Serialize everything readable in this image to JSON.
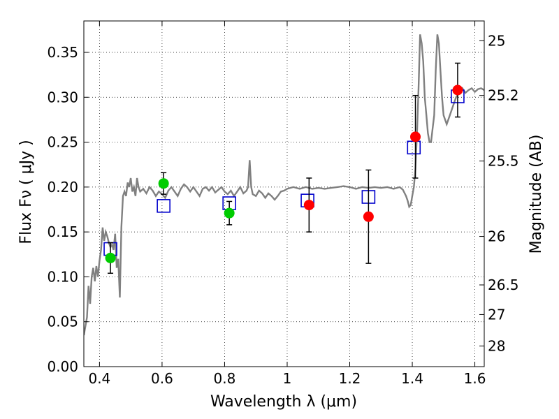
{
  "chart_data": {
    "type": "scatter",
    "xlabel": "Wavelength  λ (μm)",
    "ylabel": "Flux  Fν  ( μJy )",
    "ylabel_right": "Magnitude (AB)",
    "xlim": [
      0.35,
      1.63
    ],
    "ylim": [
      0.0,
      0.385
    ],
    "grid": true,
    "x_ticks": [
      0.4,
      0.6,
      0.8,
      1.0,
      1.2,
      1.4,
      1.6
    ],
    "x_tick_labels": [
      "0.4",
      "0.6",
      "0.8",
      "1",
      "1.2",
      "1.4",
      "1.6"
    ],
    "y_ticks": [
      0.0,
      0.05,
      0.1,
      0.15,
      0.2,
      0.25,
      0.3,
      0.35
    ],
    "y_tick_labels": [
      "0.00",
      "0.05",
      "0.10",
      "0.15",
      "0.20",
      "0.25",
      "0.30",
      "0.35"
    ],
    "right_ticks": [
      {
        "label": "25",
        "flux": 0.363
      },
      {
        "label": "25.2",
        "flux": 0.302
      },
      {
        "label": "25.5",
        "flux": 0.229
      },
      {
        "label": "26",
        "flux": 0.145
      },
      {
        "label": "26.5",
        "flux": 0.091
      },
      {
        "label": "27",
        "flux": 0.058
      },
      {
        "label": "28",
        "flux": 0.023
      }
    ],
    "series": [
      {
        "kind": "line",
        "color": "#808080",
        "points": [
          [
            0.35,
            0.035
          ],
          [
            0.36,
            0.055
          ],
          [
            0.365,
            0.09
          ],
          [
            0.37,
            0.07
          ],
          [
            0.375,
            0.1
          ],
          [
            0.38,
            0.11
          ],
          [
            0.385,
            0.095
          ],
          [
            0.39,
            0.112
          ],
          [
            0.395,
            0.1
          ],
          [
            0.4,
            0.118
          ],
          [
            0.405,
            0.13
          ],
          [
            0.41,
            0.155
          ],
          [
            0.415,
            0.14
          ],
          [
            0.42,
            0.15
          ],
          [
            0.425,
            0.145
          ],
          [
            0.43,
            0.138
          ],
          [
            0.435,
            0.133
          ],
          [
            0.44,
            0.136
          ],
          [
            0.445,
            0.13
          ],
          [
            0.45,
            0.148
          ],
          [
            0.455,
            0.11
          ],
          [
            0.46,
            0.12
          ],
          [
            0.465,
            0.077
          ],
          [
            0.47,
            0.155
          ],
          [
            0.475,
            0.19
          ],
          [
            0.48,
            0.195
          ],
          [
            0.485,
            0.19
          ],
          [
            0.49,
            0.205
          ],
          [
            0.495,
            0.2
          ],
          [
            0.5,
            0.21
          ],
          [
            0.505,
            0.195
          ],
          [
            0.51,
            0.2
          ],
          [
            0.515,
            0.19
          ],
          [
            0.52,
            0.21
          ],
          [
            0.525,
            0.2
          ],
          [
            0.53,
            0.195
          ],
          [
            0.54,
            0.198
          ],
          [
            0.55,
            0.193
          ],
          [
            0.56,
            0.2
          ],
          [
            0.57,
            0.196
          ],
          [
            0.58,
            0.19
          ],
          [
            0.59,
            0.195
          ],
          [
            0.6,
            0.192
          ],
          [
            0.61,
            0.188
          ],
          [
            0.62,
            0.196
          ],
          [
            0.63,
            0.2
          ],
          [
            0.64,
            0.195
          ],
          [
            0.65,
            0.19
          ],
          [
            0.66,
            0.198
          ],
          [
            0.67,
            0.203
          ],
          [
            0.68,
            0.2
          ],
          [
            0.69,
            0.195
          ],
          [
            0.7,
            0.2
          ],
          [
            0.71,
            0.195
          ],
          [
            0.72,
            0.19
          ],
          [
            0.73,
            0.198
          ],
          [
            0.74,
            0.2
          ],
          [
            0.75,
            0.196
          ],
          [
            0.76,
            0.2
          ],
          [
            0.77,
            0.194
          ],
          [
            0.78,
            0.197
          ],
          [
            0.79,
            0.2
          ],
          [
            0.8,
            0.195
          ],
          [
            0.81,
            0.192
          ],
          [
            0.82,
            0.196
          ],
          [
            0.83,
            0.19
          ],
          [
            0.84,
            0.195
          ],
          [
            0.85,
            0.2
          ],
          [
            0.86,
            0.193
          ],
          [
            0.87,
            0.196
          ],
          [
            0.875,
            0.2
          ],
          [
            0.88,
            0.23
          ],
          [
            0.885,
            0.2
          ],
          [
            0.89,
            0.192
          ],
          [
            0.9,
            0.19
          ],
          [
            0.91,
            0.196
          ],
          [
            0.92,
            0.193
          ],
          [
            0.93,
            0.188
          ],
          [
            0.94,
            0.193
          ],
          [
            0.95,
            0.19
          ],
          [
            0.96,
            0.186
          ],
          [
            0.97,
            0.19
          ],
          [
            0.98,
            0.195
          ],
          [
            0.99,
            0.196
          ],
          [
            1.0,
            0.198
          ],
          [
            1.02,
            0.2
          ],
          [
            1.04,
            0.198
          ],
          [
            1.06,
            0.2
          ],
          [
            1.08,
            0.198
          ],
          [
            1.1,
            0.199
          ],
          [
            1.12,
            0.198
          ],
          [
            1.14,
            0.199
          ],
          [
            1.16,
            0.2
          ],
          [
            1.18,
            0.201
          ],
          [
            1.2,
            0.2
          ],
          [
            1.22,
            0.198
          ],
          [
            1.24,
            0.2
          ],
          [
            1.26,
            0.199
          ],
          [
            1.28,
            0.2
          ],
          [
            1.3,
            0.199
          ],
          [
            1.32,
            0.2
          ],
          [
            1.34,
            0.198
          ],
          [
            1.36,
            0.2
          ],
          [
            1.37,
            0.197
          ],
          [
            1.38,
            0.19
          ],
          [
            1.385,
            0.185
          ],
          [
            1.39,
            0.178
          ],
          [
            1.395,
            0.18
          ],
          [
            1.4,
            0.19
          ],
          [
            1.405,
            0.2
          ],
          [
            1.41,
            0.22
          ],
          [
            1.415,
            0.26
          ],
          [
            1.42,
            0.31
          ],
          [
            1.425,
            0.37
          ],
          [
            1.43,
            0.36
          ],
          [
            1.435,
            0.34
          ],
          [
            1.44,
            0.3
          ],
          [
            1.445,
            0.28
          ],
          [
            1.45,
            0.26
          ],
          [
            1.455,
            0.25
          ],
          [
            1.46,
            0.25
          ],
          [
            1.465,
            0.265
          ],
          [
            1.47,
            0.28
          ],
          [
            1.475,
            0.33
          ],
          [
            1.48,
            0.37
          ],
          [
            1.485,
            0.36
          ],
          [
            1.49,
            0.33
          ],
          [
            1.495,
            0.3
          ],
          [
            1.5,
            0.28
          ],
          [
            1.51,
            0.27
          ],
          [
            1.52,
            0.28
          ],
          [
            1.53,
            0.29
          ],
          [
            1.54,
            0.3
          ],
          [
            1.55,
            0.305
          ],
          [
            1.56,
            0.31
          ],
          [
            1.57,
            0.305
          ],
          [
            1.58,
            0.308
          ],
          [
            1.59,
            0.31
          ],
          [
            1.6,
            0.306
          ],
          [
            1.61,
            0.309
          ],
          [
            1.62,
            0.31
          ],
          [
            1.63,
            0.308
          ]
        ]
      },
      {
        "kind": "open-square",
        "color": "#0000cc",
        "points": [
          [
            0.435,
            0.131
          ],
          [
            0.605,
            0.179
          ],
          [
            0.815,
            0.182
          ],
          [
            1.065,
            0.185
          ],
          [
            1.26,
            0.189
          ],
          [
            1.405,
            0.244
          ],
          [
            1.545,
            0.301
          ]
        ]
      },
      {
        "kind": "filled-circle",
        "color": "#00cc00",
        "points": [
          {
            "x": 0.435,
            "y": 0.121,
            "err": 0.017
          },
          {
            "x": 0.605,
            "y": 0.204,
            "err": 0.012
          },
          {
            "x": 0.815,
            "y": 0.171,
            "err": 0.013
          }
        ]
      },
      {
        "kind": "filled-circle",
        "color": "#ff0000",
        "points": [
          {
            "x": 1.07,
            "y": 0.18,
            "err": 0.03
          },
          {
            "x": 1.26,
            "y": 0.167,
            "err": 0.052
          },
          {
            "x": 1.41,
            "y": 0.256,
            "err": 0.046
          },
          {
            "x": 1.545,
            "y": 0.308,
            "err": 0.03
          }
        ]
      }
    ]
  }
}
